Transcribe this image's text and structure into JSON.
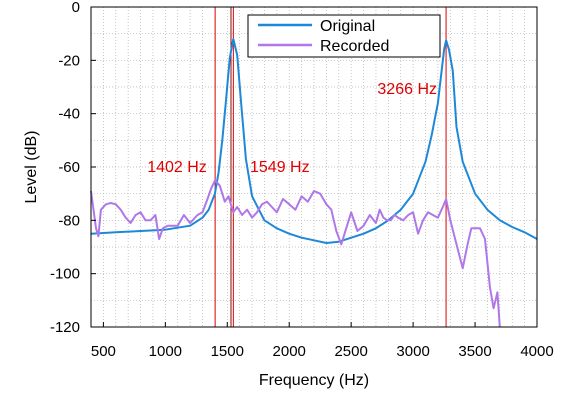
{
  "chart_data": {
    "type": "line",
    "title": "",
    "xlabel": "Frequency (Hz)",
    "ylabel": "Level (dB)",
    "xlim": [
      400,
      4000
    ],
    "ylim": [
      -120,
      0
    ],
    "x_ticks": [
      500,
      1000,
      1500,
      2000,
      2500,
      3000,
      3500,
      4000
    ],
    "y_ticks": [
      0,
      -20,
      -40,
      -60,
      -80,
      -100,
      -120
    ],
    "x_tick_labels": [
      "500",
      "1000",
      "1500",
      "2000",
      "2500",
      "3000",
      "3500",
      "4000"
    ],
    "y_tick_labels": [
      "0",
      "-20",
      "-40",
      "-60",
      "-80",
      "-100",
      "-120"
    ],
    "grid": true,
    "legend": "top-center",
    "series": [
      {
        "name": "Original",
        "color": "#1e88d8",
        "x": [
          400,
          600,
          800,
          1000,
          1200,
          1300,
          1350,
          1400,
          1430,
          1460,
          1490,
          1520,
          1549,
          1580,
          1610,
          1650,
          1700,
          1800,
          1900,
          2000,
          2100,
          2200,
          2300,
          2400,
          2500,
          2600,
          2700,
          2800,
          2900,
          3000,
          3100,
          3150,
          3200,
          3230,
          3250,
          3266,
          3290,
          3320,
          3350,
          3400,
          3500,
          3600,
          3700,
          3800,
          3900,
          4000
        ],
        "values": [
          -85,
          -84.5,
          -84,
          -83.5,
          -82,
          -79,
          -76,
          -70,
          -62,
          -50,
          -35,
          -19,
          -12,
          -18,
          -35,
          -57,
          -71,
          -80,
          -83,
          -85,
          -86.5,
          -87.5,
          -88.5,
          -88,
          -86.5,
          -85,
          -83,
          -80,
          -76,
          -70,
          -58,
          -48,
          -36,
          -24,
          -16,
          -12.5,
          -16,
          -24,
          -45,
          -58,
          -70,
          -76,
          -80,
          -82.5,
          -84.5,
          -87
        ]
      },
      {
        "name": "Recorded",
        "color": "#b077e8",
        "x": [
          400,
          440,
          460,
          480,
          520,
          560,
          600,
          640,
          680,
          720,
          760,
          800,
          840,
          880,
          920,
          950,
          980,
          1020,
          1060,
          1100,
          1150,
          1200,
          1260,
          1300,
          1340,
          1370,
          1402,
          1440,
          1480,
          1510,
          1549,
          1580,
          1620,
          1660,
          1700,
          1740,
          1780,
          1820,
          1860,
          1900,
          1950,
          2000,
          2050,
          2100,
          2150,
          2200,
          2250,
          2300,
          2340,
          2380,
          2420,
          2460,
          2500,
          2550,
          2600,
          2650,
          2700,
          2730,
          2760,
          2790,
          2820,
          2850,
          2880,
          2920,
          2960,
          3000,
          3040,
          3080,
          3120,
          3160,
          3200,
          3240,
          3266,
          3300,
          3350,
          3400,
          3440,
          3470,
          3500,
          3540,
          3580,
          3620,
          3650,
          3680,
          3700
        ],
        "values": [
          -69,
          -83,
          -86,
          -76,
          -74,
          -73.5,
          -74,
          -76,
          -79,
          -81,
          -78,
          -77,
          -80,
          -80,
          -78,
          -87,
          -83,
          -82,
          -82,
          -82,
          -78,
          -81,
          -78,
          -77,
          -72,
          -68,
          -65,
          -67,
          -73,
          -71,
          -77,
          -75,
          -78,
          -76,
          -79,
          -77,
          -74,
          -73,
          -75,
          -77,
          -72,
          -74,
          -76,
          -71,
          -73,
          -69,
          -70,
          -74,
          -76,
          -84,
          -89,
          -83,
          -77,
          -84,
          -82,
          -78,
          -81,
          -76,
          -79,
          -80,
          -80,
          -78,
          -79,
          -80,
          -78,
          -77,
          -85,
          -80,
          -77,
          -78,
          -79,
          -75,
          -72,
          -80,
          -89,
          -98,
          -89,
          -83,
          -83,
          -83,
          -87,
          -105,
          -113,
          -107,
          -120
        ]
      }
    ],
    "annotations": [
      {
        "label": "1402 Hz",
        "x": 1402
      },
      {
        "label": "1549 Hz",
        "x": 1549
      },
      {
        "label": "3266 Hz",
        "x": 3266
      }
    ],
    "annotation_color": "#e00000",
    "cursor_color": "#7a1010",
    "cursor_x": 1530
  }
}
